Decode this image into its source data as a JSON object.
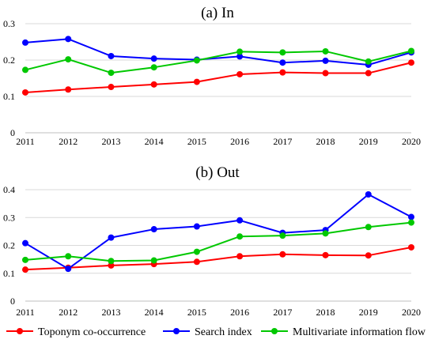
{
  "chart_data": [
    {
      "type": "line",
      "title": "(a) In",
      "categories": [
        "2011",
        "2012",
        "2013",
        "2014",
        "2015",
        "2016",
        "2017",
        "2018",
        "2019",
        "2020"
      ],
      "ylim": [
        0,
        0.3
      ],
      "yticks": [
        "0",
        "0.1",
        "0.2",
        "0.3"
      ],
      "series": [
        {
          "name": "Toponym co-occurrence",
          "color": "#ff0000",
          "values": [
            0.111,
            0.119,
            0.126,
            0.133,
            0.14,
            0.161,
            0.166,
            0.164,
            0.164,
            0.193
          ]
        },
        {
          "name": "Search index",
          "color": "#0000ff",
          "values": [
            0.248,
            0.258,
            0.211,
            0.204,
            0.201,
            0.21,
            0.193,
            0.198,
            0.187,
            0.221
          ]
        },
        {
          "name": "Multivariate information flow",
          "color": "#00c800",
          "values": [
            0.173,
            0.202,
            0.165,
            0.18,
            0.199,
            0.223,
            0.221,
            0.224,
            0.196,
            0.225
          ]
        }
      ]
    },
    {
      "type": "line",
      "title": "(b) Out",
      "categories": [
        "2011",
        "2012",
        "2013",
        "2014",
        "2015",
        "2016",
        "2017",
        "2018",
        "2019",
        "2020"
      ],
      "ylim": [
        0,
        0.4
      ],
      "yticks": [
        "0",
        "0.1",
        "0.2",
        "0.3",
        "0.4"
      ],
      "series": [
        {
          "name": "Toponym co-occurrence",
          "color": "#ff0000",
          "values": [
            0.113,
            0.12,
            0.128,
            0.133,
            0.141,
            0.161,
            0.168,
            0.165,
            0.164,
            0.193
          ]
        },
        {
          "name": "Search index",
          "color": "#0000ff",
          "values": [
            0.208,
            0.116,
            0.228,
            0.258,
            0.268,
            0.29,
            0.245,
            0.255,
            0.383,
            0.302
          ]
        },
        {
          "name": "Multivariate information flow",
          "color": "#00c800",
          "values": [
            0.148,
            0.161,
            0.144,
            0.146,
            0.177,
            0.232,
            0.235,
            0.243,
            0.266,
            0.282
          ]
        }
      ]
    }
  ],
  "legend": {
    "items": [
      {
        "label": "Toponym co-occurrence",
        "color": "#ff0000"
      },
      {
        "label": "Search index",
        "color": "#0000ff"
      },
      {
        "label": "Multivariate information flow",
        "color": "#00c800"
      }
    ]
  }
}
